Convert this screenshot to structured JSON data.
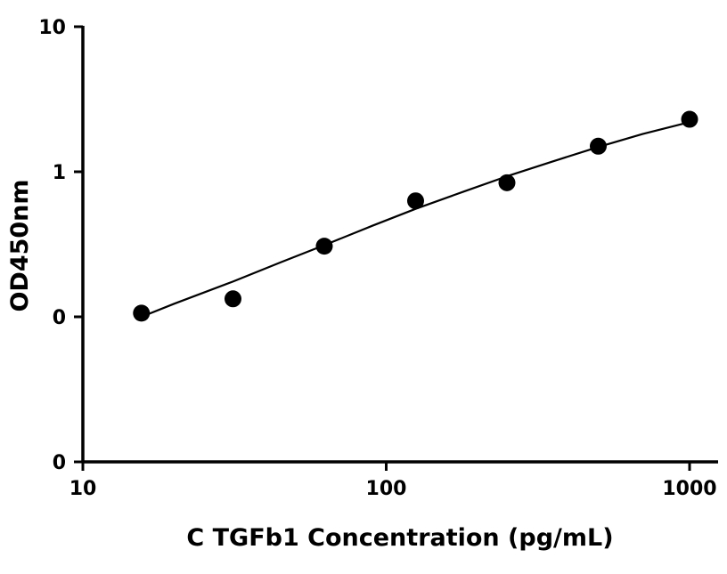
{
  "chart_data": {
    "type": "scatter",
    "title": "",
    "xlabel": "C TGFb1 Concentration (pg/mL)",
    "ylabel": "OD450nm",
    "x_scale": "log",
    "y_scale": "log",
    "xlim": [
      10,
      1200
    ],
    "ylim": [
      0.01,
      10
    ],
    "x_ticks": [
      10,
      100,
      1000
    ],
    "x_tick_labels": [
      "10",
      "100",
      "1000"
    ],
    "y_ticks": [
      0.01,
      0.1,
      1,
      10
    ],
    "y_tick_labels": [
      "0",
      "0",
      "1",
      "10"
    ],
    "grid": false,
    "legend": "none",
    "marker_color": "#000000",
    "series": [
      {
        "points": [
          {
            "x": 15.6,
            "y": 0.106
          },
          {
            "x": 31.25,
            "y": 0.133
          },
          {
            "x": 62.5,
            "y": 0.307
          },
          {
            "x": 125,
            "y": 0.63
          },
          {
            "x": 250,
            "y": 0.84
          },
          {
            "x": 500,
            "y": 1.5
          },
          {
            "x": 1000,
            "y": 2.3
          }
        ]
      }
    ],
    "fit_curve": {
      "type": "4PL",
      "x_range": [
        15.6,
        1000
      ],
      "points": [
        {
          "x": 15.6,
          "y": 0.1
        },
        {
          "x": 20,
          "y": 0.123
        },
        {
          "x": 31.25,
          "y": 0.175
        },
        {
          "x": 45,
          "y": 0.238
        },
        {
          "x": 62.5,
          "y": 0.312
        },
        {
          "x": 90,
          "y": 0.424
        },
        {
          "x": 125,
          "y": 0.555
        },
        {
          "x": 180,
          "y": 0.73
        },
        {
          "x": 250,
          "y": 0.93
        },
        {
          "x": 350,
          "y": 1.17
        },
        {
          "x": 500,
          "y": 1.48
        },
        {
          "x": 700,
          "y": 1.82
        },
        {
          "x": 1000,
          "y": 2.2
        }
      ]
    }
  }
}
